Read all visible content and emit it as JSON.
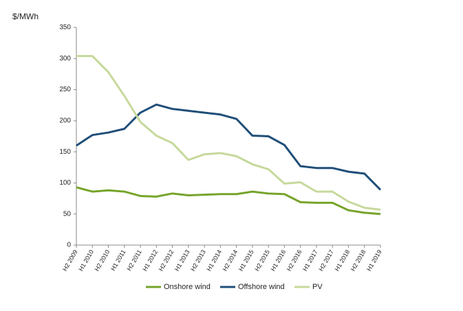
{
  "chart_data": {
    "type": "line",
    "y_label": "$/MWh",
    "categories": [
      "H2 2009",
      "H1 2010",
      "H2 2010",
      "H1 2011",
      "H2 2011",
      "H1 2012",
      "H2 2012",
      "H1 2013",
      "H2 2013",
      "H1 2014",
      "H2 2014",
      "H1 2015",
      "H2 2015",
      "H1 2016",
      "H2 2016",
      "H1 2017",
      "H2 2017",
      "H1 2018",
      "H2 2018",
      "H1 2019"
    ],
    "series": [
      {
        "name": "Onshore wind",
        "color": "#76a42a",
        "values": [
          93,
          86,
          88,
          86,
          79,
          78,
          83,
          80,
          81,
          82,
          82,
          86,
          83,
          82,
          69,
          68,
          68,
          56,
          52,
          50
        ]
      },
      {
        "name": "Offshore wind",
        "color": "#1f4e79",
        "values": [
          160,
          177,
          181,
          187,
          213,
          226,
          219,
          216,
          213,
          210,
          203,
          176,
          175,
          161,
          127,
          124,
          124,
          118,
          115,
          89
        ]
      },
      {
        "name": "PV",
        "color": "#c6d99b",
        "values": [
          304,
          304,
          278,
          240,
          198,
          176,
          164,
          137,
          146,
          148,
          143,
          130,
          122,
          99,
          101,
          86,
          86,
          70,
          60,
          57
        ]
      }
    ],
    "ylim": [
      0,
      350
    ],
    "yticks": [
      0,
      50,
      100,
      150,
      200,
      250,
      300,
      350
    ],
    "grid": false,
    "legend": "bottom"
  }
}
